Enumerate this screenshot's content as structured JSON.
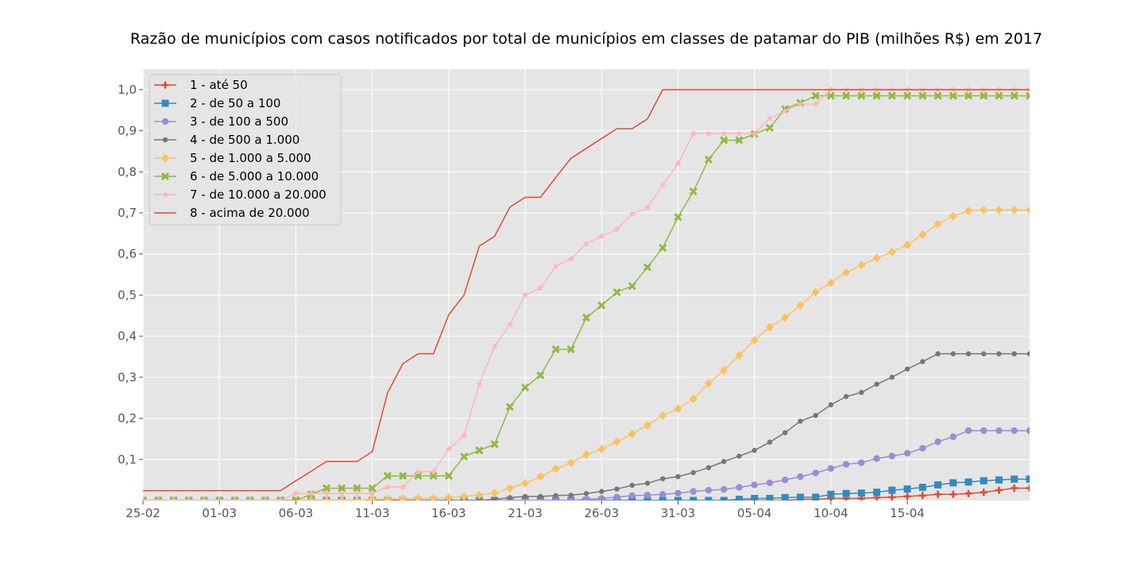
{
  "chart_data": {
    "type": "line",
    "title": "Razão de municípios com casos notificados por total de municípios em classes de patamar do PIB (milhões R$) em 2017",
    "xlabel": "",
    "ylabel": "",
    "x_start": "2020-02-25",
    "x_tick_labels": [
      "25-02",
      "01-03",
      "06-03",
      "11-03",
      "16-03",
      "21-03",
      "26-03",
      "31-03",
      "05-04",
      "10-04",
      "15-04"
    ],
    "y_ticks": [
      0.1,
      0.2,
      0.3,
      0.4,
      0.5,
      0.6,
      0.7,
      0.8,
      0.9,
      1.0
    ],
    "y_tick_labels": [
      "0,1",
      "0,2",
      "0,3",
      "0,4",
      "0,5",
      "0,6",
      "0,7",
      "0,8",
      "0,9",
      "1,0"
    ],
    "ylim": [
      0,
      1.05
    ],
    "grid": true,
    "legend_position": "top-left",
    "series": [
      {
        "name": "1 - até 50",
        "color": "#E24A33",
        "marker": "plus",
        "values": [
          0,
          0,
          0,
          0,
          0,
          0,
          0,
          0,
          0,
          0,
          0,
          0,
          0,
          0,
          0,
          0,
          0,
          0,
          0,
          0,
          0,
          0,
          0,
          0,
          0,
          0,
          0,
          0,
          0,
          0,
          0,
          0,
          0,
          0,
          0,
          0,
          0,
          0,
          0,
          0,
          0,
          0,
          0,
          0.003,
          0.003,
          0.005,
          0.005,
          0.005,
          0.007,
          0.008,
          0.01,
          0.012,
          0.015,
          0.015,
          0.017,
          0.02,
          0.025,
          0.03,
          0.03
        ]
      },
      {
        "name": "2 - de 50 a 100",
        "color": "#348ABD",
        "marker": "square",
        "values": [
          0,
          0,
          0,
          0,
          0,
          0,
          0,
          0,
          0,
          0,
          0,
          0,
          0,
          0,
          0,
          0,
          0,
          0,
          0,
          0,
          0,
          0,
          0,
          0,
          0,
          0,
          0,
          0,
          0,
          0,
          0,
          0,
          0,
          0,
          0,
          0,
          0,
          0,
          0,
          0.003,
          0.005,
          0.005,
          0.007,
          0.008,
          0.008,
          0.015,
          0.017,
          0.018,
          0.02,
          0.025,
          0.028,
          0.032,
          0.038,
          0.043,
          0.045,
          0.048,
          0.05,
          0.052,
          0.052
        ]
      },
      {
        "name": "3 - de 100 a 500",
        "color": "#988ED5",
        "marker": "circle",
        "values": [
          0,
          0,
          0,
          0,
          0,
          0,
          0,
          0,
          0,
          0,
          0,
          0,
          0,
          0,
          0,
          0,
          0,
          0,
          0,
          0,
          0,
          0,
          0,
          0,
          0,
          0,
          0,
          0,
          0,
          0.003,
          0.005,
          0.008,
          0.012,
          0.013,
          0.015,
          0.018,
          0.022,
          0.025,
          0.027,
          0.032,
          0.038,
          0.043,
          0.05,
          0.058,
          0.067,
          0.078,
          0.088,
          0.092,
          0.102,
          0.108,
          0.115,
          0.127,
          0.143,
          0.155,
          0.17,
          0.17,
          0.17,
          0.17,
          0.17
        ]
      },
      {
        "name": "4 - de 500 a 1.000",
        "color": "#777777",
        "marker": "small-circle",
        "values": [
          0,
          0,
          0,
          0,
          0,
          0,
          0,
          0,
          0,
          0,
          0,
          0,
          0,
          0,
          0,
          0,
          0,
          0,
          0,
          0,
          0,
          0,
          0,
          0.003,
          0.007,
          0.01,
          0.01,
          0.012,
          0.013,
          0.017,
          0.022,
          0.028,
          0.037,
          0.042,
          0.053,
          0.058,
          0.068,
          0.08,
          0.095,
          0.108,
          0.122,
          0.142,
          0.165,
          0.193,
          0.207,
          0.233,
          0.253,
          0.263,
          0.283,
          0.3,
          0.32,
          0.338,
          0.357,
          0.357,
          0.357,
          0.357,
          0.357,
          0.357,
          0.357
        ]
      },
      {
        "name": "5 - de 1.000 a 5.000",
        "color": "#FBC15E",
        "marker": "diamond",
        "values": [
          0,
          0,
          0,
          0,
          0,
          0,
          0,
          0,
          0,
          0,
          0,
          0,
          0,
          0,
          0,
          0.003,
          0.003,
          0.004,
          0.005,
          0.005,
          0.007,
          0.01,
          0.013,
          0.018,
          0.03,
          0.042,
          0.058,
          0.077,
          0.092,
          0.112,
          0.125,
          0.143,
          0.162,
          0.183,
          0.207,
          0.223,
          0.247,
          0.285,
          0.317,
          0.353,
          0.39,
          0.422,
          0.445,
          0.475,
          0.507,
          0.53,
          0.555,
          0.573,
          0.59,
          0.605,
          0.622,
          0.647,
          0.673,
          0.692,
          0.705,
          0.707,
          0.707,
          0.707,
          0.707
        ]
      },
      {
        "name": "6 - de 5.000 a 10.000",
        "color": "#8EBA42",
        "marker": "x",
        "values": [
          0,
          0,
          0,
          0,
          0,
          0,
          0,
          0,
          0,
          0,
          0,
          0.015,
          0.03,
          0.03,
          0.03,
          0.03,
          0.06,
          0.06,
          0.06,
          0.06,
          0.06,
          0.107,
          0.122,
          0.137,
          0.228,
          0.275,
          0.305,
          0.368,
          0.368,
          0.445,
          0.475,
          0.507,
          0.522,
          0.568,
          0.615,
          0.69,
          0.752,
          0.83,
          0.877,
          0.877,
          0.892,
          0.907,
          0.953,
          0.968,
          0.985,
          0.985,
          0.985,
          0.985,
          0.985,
          0.985,
          0.985,
          0.985,
          0.985,
          0.985,
          0.985,
          0.985,
          0.985,
          0.985,
          0.985
        ]
      },
      {
        "name": "7 - de 10.000 a 20.000",
        "color": "#FFB5B8",
        "marker": "star",
        "values": [
          0,
          0,
          0,
          0,
          0,
          0,
          0,
          0,
          0,
          0,
          0.017,
          0.017,
          0.017,
          0.017,
          0.017,
          0.017,
          0.033,
          0.033,
          0.07,
          0.07,
          0.125,
          0.158,
          0.283,
          0.375,
          0.428,
          0.5,
          0.517,
          0.57,
          0.588,
          0.625,
          0.643,
          0.66,
          0.697,
          0.713,
          0.768,
          0.82,
          0.893,
          0.893,
          0.893,
          0.893,
          0.893,
          0.93,
          0.948,
          0.965,
          0.965,
          1.0,
          1.0,
          1.0,
          1.0,
          1.0,
          1.0,
          1.0,
          1.0,
          1.0,
          1.0,
          1.0,
          1.0,
          1.0,
          1.0
        ]
      },
      {
        "name": "8 - acima de 20.000",
        "color": "#E24A33",
        "marker": "none",
        "values": [
          0.024,
          0.024,
          0.024,
          0.024,
          0.024,
          0.024,
          0.024,
          0.024,
          0.024,
          0.024,
          0.048,
          0.071,
          0.095,
          0.095,
          0.095,
          0.119,
          0.262,
          0.333,
          0.357,
          0.357,
          0.452,
          0.5,
          0.619,
          0.643,
          0.714,
          0.738,
          0.738,
          0.786,
          0.833,
          0.857,
          0.881,
          0.905,
          0.905,
          0.929,
          1.0,
          1.0,
          1.0,
          1.0,
          1.0,
          1.0,
          1.0,
          1.0,
          1.0,
          1.0,
          1.0,
          1.0,
          1.0,
          1.0,
          1.0,
          1.0,
          1.0,
          1.0,
          1.0,
          1.0,
          1.0,
          1.0,
          1.0,
          1.0,
          1.0
        ]
      }
    ]
  }
}
